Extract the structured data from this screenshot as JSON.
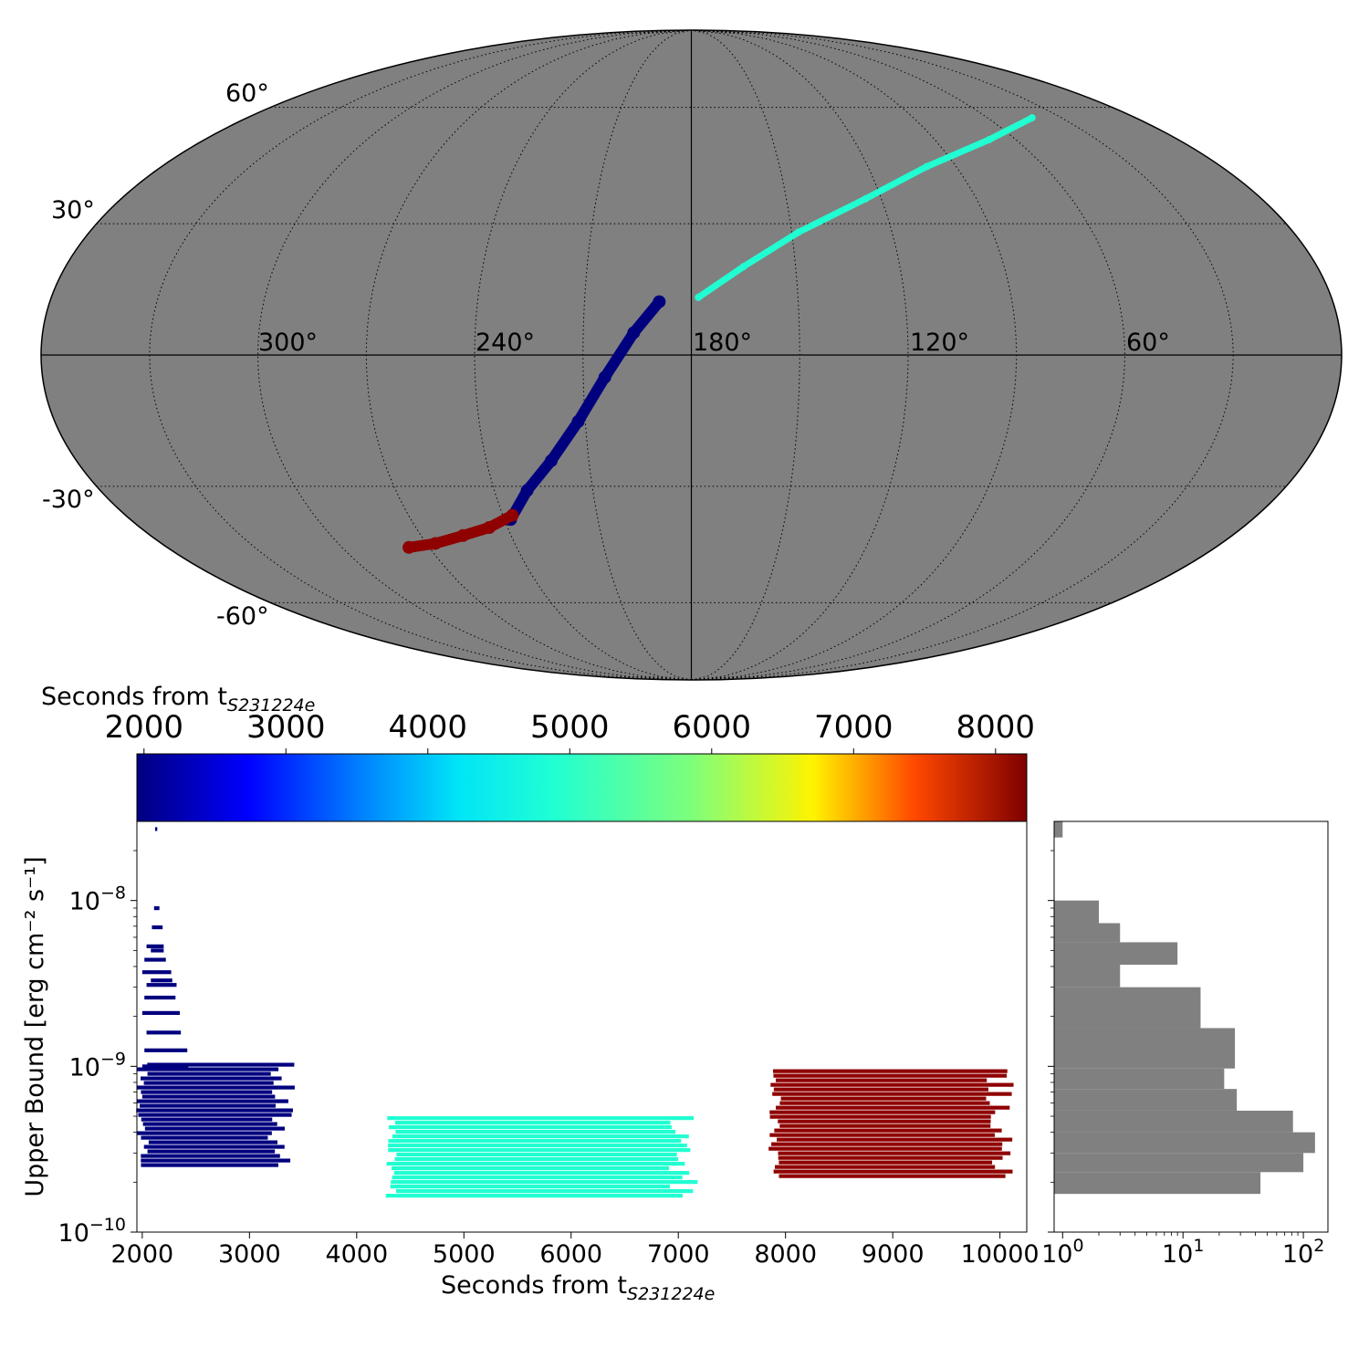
{
  "chart_data": [
    {
      "type": "scatter",
      "projection": "mollweide",
      "background_color": "#808080",
      "grid": true,
      "lon_tick_labels": [
        "300°",
        "240°",
        "180°",
        "120°",
        "60°"
      ],
      "lat_tick_labels": [
        "60°",
        "30°",
        "-30°",
        "-60°"
      ],
      "series": [
        {
          "color": "#21ffd2",
          "time_s": 5000,
          "points": [
            [
              42,
              57
            ],
            [
              70,
              51
            ],
            [
              100,
              44
            ],
            [
              125,
              36
            ],
            [
              148,
              28
            ],
            [
              165,
              20
            ],
            [
              178,
              13
            ]
          ]
        },
        {
          "color": "#00007f",
          "time_s": 2400,
          "points": [
            [
              189,
              12
            ],
            [
              196,
              5
            ],
            [
              204,
              -5
            ],
            [
              212,
              -15
            ],
            [
              221,
              -24
            ],
            [
              230,
              -31
            ],
            [
              238,
              -38
            ]
          ]
        },
        {
          "color": "#8f0000",
          "time_s": 8200,
          "points": [
            [
              237,
              -37
            ],
            [
              246,
              -40
            ],
            [
              256,
              -42
            ],
            [
              267,
              -44
            ],
            [
              277,
              -45
            ]
          ]
        }
      ]
    },
    {
      "type": "colorbar",
      "label_main": "Seconds from t",
      "label_sub": "S231224e",
      "ticks": [
        "2000",
        "3000",
        "4000",
        "5000",
        "6000",
        "7000",
        "8000"
      ],
      "range": [
        1950,
        8220
      ],
      "colormap": "jet"
    },
    {
      "type": "bar",
      "orientation": "horizontal-segments",
      "xlabel_main": "Seconds from t",
      "xlabel_sub": "S231224e",
      "ylabel": "Upper Bound [erg cm⁻² s⁻¹]",
      "xlim": [
        1950,
        10250
      ],
      "ylim": [
        1e-10,
        3e-08
      ],
      "yscale": "log",
      "x_tick_labels": [
        "2000",
        "3000",
        "4000",
        "5000",
        "6000",
        "7000",
        "8000",
        "9000",
        "10000"
      ],
      "y_tick_labels": [
        {
          "base": "10",
          "exp": "−8"
        },
        {
          "base": "10",
          "exp": "−9"
        },
        {
          "base": "10",
          "exp": "−10"
        }
      ],
      "groups": [
        {
          "color": "#00007f",
          "x_start": 2000,
          "x_end": 3300,
          "y_min": 2.6e-10,
          "y_max": 1.05e-09
        },
        {
          "color": "#21ffd2",
          "x_start": 4330,
          "x_end": 7050,
          "y_min": 1.7e-10,
          "y_max": 5e-10
        },
        {
          "color": "#8f0000",
          "x_start": 7900,
          "x_end": 10000,
          "y_min": 2.1e-10,
          "y_max": 9.6e-10
        }
      ],
      "outliers": [
        {
          "color": "#00007f",
          "x_start": 2080,
          "x_end": 2280,
          "y": 3.3e-09
        },
        {
          "color": "#00007f",
          "x_start": 2080,
          "x_end": 2200,
          "y": 5e-09
        },
        {
          "color": "#00007f",
          "x_start": 2090,
          "x_end": 2190,
          "y": 6.9e-09
        },
        {
          "color": "#00007f",
          "x_start": 2110,
          "x_end": 2160,
          "y": 9e-09
        },
        {
          "color": "#00007f",
          "x_start": 2120,
          "x_end": 2140,
          "y": 2.7e-08
        }
      ]
    },
    {
      "type": "bar",
      "orientation": "horizontal",
      "color": "#808080",
      "xscale": "log",
      "xlim": [
        0.85,
        160
      ],
      "x_tick_labels": [
        {
          "base": "10",
          "exp": "0"
        },
        {
          "base": "10",
          "exp": "1"
        },
        {
          "base": "10",
          "exp": "2"
        }
      ],
      "bins": [
        {
          "y_low": 2.4e-08,
          "y_high": 3e-08,
          "count": 1
        },
        {
          "y_low": 7.3e-09,
          "y_high": 1e-08,
          "count": 2
        },
        {
          "y_low": 5.6e-09,
          "y_high": 7.3e-09,
          "count": 3
        },
        {
          "y_low": 4.1e-09,
          "y_high": 5.6e-09,
          "count": 9
        },
        {
          "y_low": 3e-09,
          "y_high": 4.1e-09,
          "count": 3
        },
        {
          "y_low": 1.7e-09,
          "y_high": 3e-09,
          "count": 14
        },
        {
          "y_low": 9.7e-10,
          "y_high": 1.7e-09,
          "count": 27
        },
        {
          "y_low": 7.3e-10,
          "y_high": 9.7e-10,
          "count": 22
        },
        {
          "y_low": 5.4e-10,
          "y_high": 7.3e-10,
          "count": 28
        },
        {
          "y_low": 4e-10,
          "y_high": 5.4e-10,
          "count": 82
        },
        {
          "y_low": 3e-10,
          "y_high": 4e-10,
          "count": 125
        },
        {
          "y_low": 2.3e-10,
          "y_high": 3e-10,
          "count": 100
        },
        {
          "y_low": 1.7e-10,
          "y_high": 2.3e-10,
          "count": 44
        }
      ]
    }
  ]
}
